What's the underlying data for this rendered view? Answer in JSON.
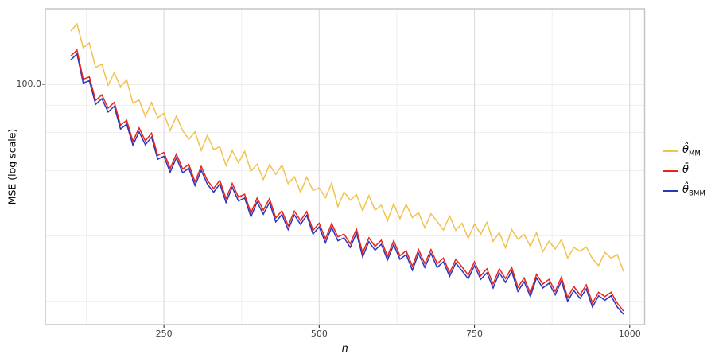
{
  "chart": {
    "y_axis_label": "MSE (log scale)",
    "x_axis_label": "n",
    "y_tick_labels": [
      "100.0"
    ],
    "x_tick_labels": [
      "250",
      "500",
      "750",
      "1000"
    ]
  },
  "figure_style": {
    "background": "#ffffff",
    "panel_border_color": "#c2c2c2",
    "grid_major_color": "#dedede",
    "grid_minor_color": "#efefef",
    "tick_color": "#333333",
    "tick_label_color": "#424242",
    "axis_title_color": "#000000"
  },
  "legend": {
    "items": [
      {
        "base": "θ̂",
        "sub": "MM"
      },
      {
        "base": "θ̄",
        "sub": ""
      },
      {
        "base": "θ̂",
        "sub": "BMM"
      }
    ]
  },
  "chart_data": {
    "type": "line",
    "title": "",
    "xlabel": "n",
    "ylabel": "MSE (log scale)",
    "y_scale": "log10",
    "xlim": [
      59,
      1024
    ],
    "ylim": [
      7.8,
      223
    ],
    "grid": true,
    "legend_position": "right",
    "x_major_gridlines": [
      250,
      500,
      750,
      1000
    ],
    "x_minor_gridlines": [
      125,
      375,
      625,
      875
    ],
    "y_major_gridlines": [
      100
    ],
    "y_minor_gridlines": [
      80,
      60,
      40,
      20,
      10
    ],
    "x": [
      100,
      110,
      120,
      130,
      140,
      150,
      160,
      170,
      180,
      190,
      200,
      210,
      220,
      230,
      240,
      250,
      260,
      270,
      280,
      290,
      300,
      310,
      320,
      330,
      340,
      350,
      360,
      370,
      380,
      390,
      400,
      410,
      420,
      430,
      440,
      450,
      460,
      470,
      480,
      490,
      500,
      510,
      520,
      530,
      540,
      550,
      560,
      570,
      580,
      590,
      600,
      610,
      620,
      630,
      640,
      650,
      660,
      670,
      680,
      690,
      700,
      710,
      720,
      730,
      740,
      750,
      760,
      770,
      780,
      790,
      800,
      810,
      820,
      830,
      840,
      850,
      860,
      870,
      880,
      890,
      900,
      910,
      920,
      930,
      940,
      950,
      960,
      970,
      980,
      990
    ],
    "series": [
      {
        "name": "θ̂_MM",
        "color": "#F2C14E",
        "values": [
          175.9,
          189.8,
          147.4,
          155.1,
          119.6,
          123.6,
          99.0,
          113.2,
          97.5,
          104.8,
          81.8,
          84.6,
          71.1,
          82.4,
          70.1,
          73.5,
          61.1,
          71.5,
          61.2,
          55.8,
          60.4,
          49.6,
          58.1,
          50.1,
          51.5,
          42.2,
          49.5,
          43.5,
          49.0,
          39.7,
          42.8,
          36.4,
          42.6,
          38.4,
          42.4,
          34.8,
          37.5,
          31.8,
          37.3,
          32.4,
          33.3,
          30.0,
          35.1,
          27.3,
          31.9,
          29.2,
          31.0,
          26.1,
          30.7,
          26.3,
          27.7,
          23.5,
          28.1,
          24.0,
          27.9,
          24.3,
          25.6,
          21.8,
          25.3,
          23.3,
          21.3,
          24.7,
          21.2,
          22.9,
          19.5,
          22.7,
          20.4,
          23.1,
          18.9,
          20.7,
          17.6,
          21.4,
          19.3,
          20.3,
          17.9,
          20.7,
          16.9,
          18.9,
          17.4,
          19.2,
          15.8,
          17.7,
          17.0,
          17.8,
          15.7,
          14.6,
          16.8,
          15.8,
          16.4,
          13.7
        ]
      },
      {
        "name": "θ̄",
        "color": "#E8231A",
        "values": [
          135.0,
          144.0,
          105.5,
          108.1,
          84.2,
          89.4,
          77.6,
          82.5,
          64.8,
          68.2,
          54.6,
          62.9,
          54.8,
          59.5,
          47.0,
          48.5,
          40.9,
          47.7,
          40.7,
          42.7,
          35.5,
          41.8,
          36.0,
          33.1,
          36.1,
          29.7,
          34.9,
          30.2,
          31.1,
          25.5,
          29.9,
          26.3,
          29.7,
          24.2,
          26.1,
          22.3,
          26.0,
          23.5,
          25.9,
          21.2,
          22.9,
          19.4,
          22.8,
          19.8,
          20.4,
          18.4,
          21.5,
          16.7,
          19.6,
          17.9,
          19.1,
          16.1,
          19.0,
          16.2,
          17.1,
          14.5,
          17.3,
          14.9,
          17.3,
          14.9,
          15.8,
          13.5,
          15.6,
          14.4,
          13.2,
          15.2,
          13.1,
          14.1,
          12.0,
          14.1,
          12.7,
          14.3,
          11.6,
          12.8,
          10.9,
          13.3,
          12.0,
          12.6,
          11.1,
          12.9,
          10.4,
          11.7,
          10.7,
          11.9,
          9.8,
          11.0,
          10.5,
          11.0,
          9.8,
          9.0
        ]
      },
      {
        "name": "θ̂_BMM",
        "color": "#2B35BE",
        "values": [
          129.6,
          138.2,
          101.3,
          103.8,
          80.8,
          85.8,
          74.5,
          79.2,
          62.2,
          65.5,
          52.4,
          60.4,
          52.6,
          57.1,
          45.1,
          46.6,
          39.3,
          45.8,
          39.1,
          41.0,
          34.1,
          40.1,
          34.6,
          31.8,
          34.7,
          28.5,
          33.5,
          29.0,
          29.9,
          24.5,
          28.7,
          25.2,
          28.5,
          23.2,
          25.1,
          21.4,
          25.0,
          22.6,
          24.9,
          20.4,
          22.0,
          18.6,
          21.9,
          19.0,
          19.6,
          17.7,
          20.6,
          16.0,
          18.8,
          17.2,
          18.3,
          15.5,
          18.2,
          15.6,
          16.4,
          13.9,
          16.6,
          14.3,
          16.6,
          14.3,
          15.2,
          13.0,
          15.0,
          13.8,
          12.7,
          14.6,
          12.6,
          13.5,
          11.5,
          13.5,
          12.2,
          13.7,
          11.1,
          12.3,
          10.5,
          12.8,
          11.5,
          12.1,
          10.7,
          12.4,
          10.0,
          11.2,
          10.3,
          11.4,
          9.4,
          10.6,
          10.1,
          10.6,
          9.4,
          8.7
        ]
      }
    ]
  }
}
